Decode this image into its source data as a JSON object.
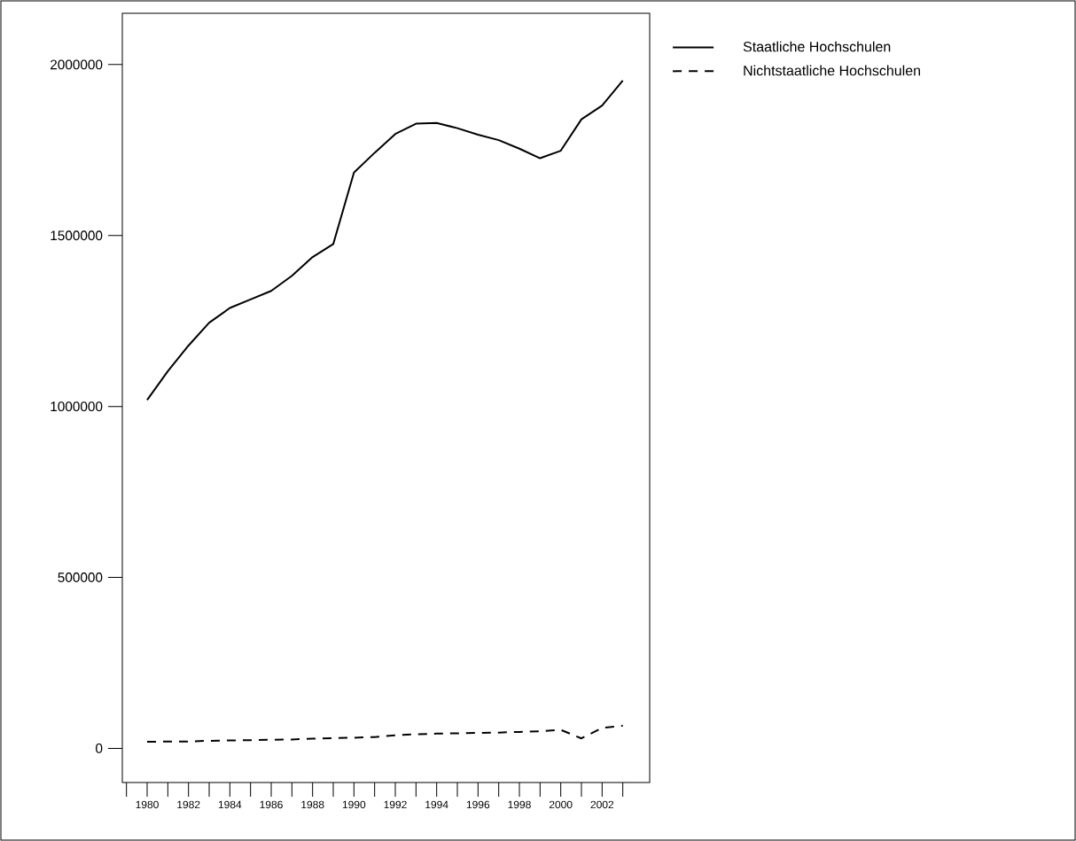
{
  "chart_data": {
    "type": "line",
    "x": [
      1980,
      1981,
      1982,
      1983,
      1984,
      1985,
      1986,
      1987,
      1988,
      1989,
      1990,
      1991,
      1992,
      1993,
      1994,
      1995,
      1996,
      1997,
      1998,
      1999,
      2000,
      2001,
      2002,
      2003
    ],
    "series": [
      {
        "name": "Staatliche Hochschulen",
        "color": "#000000",
        "line_style": "solid",
        "values": [
          1019000,
          1103000,
          1178000,
          1245000,
          1288000,
          1313000,
          1338000,
          1382000,
          1437000,
          1475000,
          1684000,
          1742000,
          1797000,
          1827000,
          1829000,
          1814000,
          1795000,
          1779000,
          1754000,
          1726000,
          1748000,
          1840000,
          1880000,
          1953000
        ]
      },
      {
        "name": "Nichtstaatliche Hochschulen",
        "color": "#000000",
        "line_style": "dashed",
        "values": [
          19000,
          20000,
          20000,
          22000,
          23000,
          24000,
          25000,
          26000,
          28000,
          30000,
          31000,
          33000,
          38000,
          41000,
          43000,
          44000,
          45000,
          46000,
          48000,
          50000,
          54000,
          29000,
          60000,
          66000
        ]
      }
    ],
    "xlim": [
      1978.8,
      2004.3
    ],
    "ylim": [
      -100000,
      2150000
    ],
    "xticks": [
      1980,
      1982,
      1984,
      1986,
      1988,
      1990,
      1992,
      1994,
      1996,
      1998,
      2000,
      2002
    ],
    "yticks": [
      0,
      500000,
      1000000,
      1500000,
      2000000
    ],
    "legend": "top right",
    "grid": false,
    "marker": "none"
  }
}
